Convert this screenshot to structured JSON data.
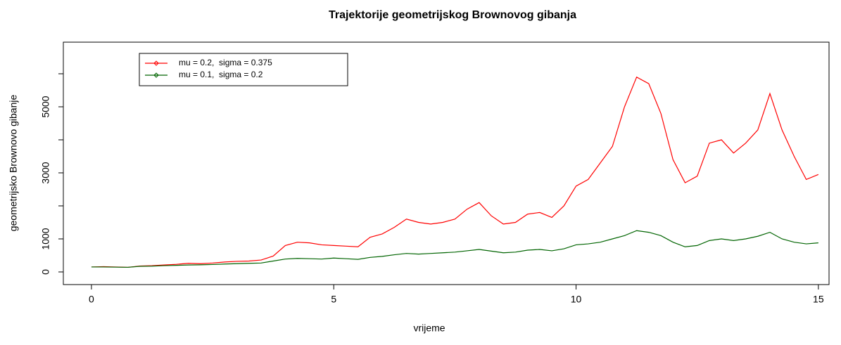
{
  "chart_data": {
    "type": "line",
    "title": "Trajektorije geometrijskog Brownovog gibanja",
    "xlabel": "vrijeme",
    "ylabel": "geometrijsko Brownovo gibanje",
    "x": [
      0,
      0.25,
      0.5,
      0.75,
      1,
      1.25,
      1.5,
      1.75,
      2,
      2.25,
      2.5,
      2.75,
      3,
      3.25,
      3.5,
      3.75,
      4,
      4.25,
      4.5,
      4.75,
      5,
      5.25,
      5.5,
      5.75,
      6,
      6.25,
      6.5,
      6.75,
      7,
      7.25,
      7.5,
      7.75,
      8,
      8.25,
      8.5,
      8.75,
      9,
      9.25,
      9.5,
      9.75,
      10,
      10.25,
      10.5,
      10.75,
      11,
      11.25,
      11.5,
      11.75,
      12,
      12.25,
      12.5,
      12.75,
      13,
      13.25,
      13.5,
      13.75,
      14,
      14.25,
      14.5,
      14.75,
      15
    ],
    "series": [
      {
        "name": "mu = 0.2,  sigma = 0.375",
        "color": "#ff0000",
        "values": [
          150,
          160,
          150,
          140,
          180,
          190,
          210,
          230,
          260,
          250,
          270,
          300,
          320,
          330,
          360,
          480,
          800,
          900,
          880,
          820,
          800,
          780,
          760,
          1050,
          1150,
          1350,
          1600,
          1500,
          1450,
          1500,
          1600,
          1900,
          2100,
          1700,
          1450,
          1500,
          1750,
          1800,
          1650,
          2000,
          2600,
          2800,
          3300,
          3800,
          5000,
          5900,
          5700,
          4800,
          3400,
          2700,
          2900,
          3900,
          4000,
          3600,
          3900,
          4300,
          5400,
          4300,
          3500,
          2800,
          2950
        ]
      },
      {
        "name": "mu = 0.1,  sigma = 0.2",
        "color": "#006400",
        "values": [
          150,
          150,
          145,
          140,
          170,
          175,
          190,
          200,
          210,
          215,
          225,
          240,
          250,
          260,
          270,
          330,
          390,
          410,
          400,
          390,
          420,
          400,
          380,
          440,
          470,
          520,
          560,
          540,
          560,
          580,
          600,
          640,
          680,
          630,
          580,
          600,
          660,
          680,
          640,
          700,
          820,
          850,
          900,
          1000,
          1100,
          1250,
          1200,
          1100,
          900,
          760,
          800,
          950,
          1000,
          950,
          1000,
          1080,
          1200,
          1000,
          900,
          850,
          880
        ]
      }
    ],
    "xlim": [
      -0.58,
      15.22
    ],
    "xticks": [
      0,
      5,
      10,
      15
    ],
    "ylim": [
      -383,
      6957
    ],
    "yticks": [
      0,
      1000,
      3000,
      5000
    ],
    "yminor_ticks": [
      2000,
      4000,
      6000
    ],
    "legend": "top-left"
  }
}
